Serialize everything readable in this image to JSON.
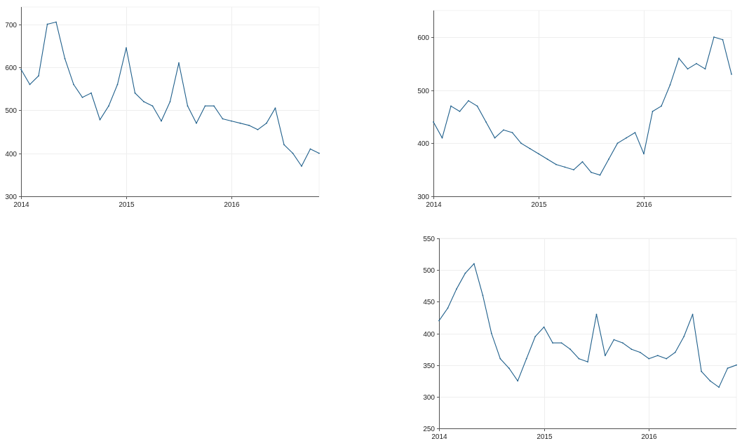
{
  "theme": {
    "line_color": "#1f5f8b"
  },
  "chart_data": [
    {
      "type": "line",
      "title": "",
      "xlabel": "",
      "ylabel": "",
      "x_ticks": [
        "2014",
        "2015",
        "2016"
      ],
      "y_ticks": [
        300,
        400,
        500,
        600,
        700
      ],
      "xlim": [
        "2014-01",
        "2016-11"
      ],
      "ylim": [
        300,
        740
      ],
      "grid": true,
      "legend": "none",
      "series": [
        {
          "x": [
            "2014-01",
            "2014-02",
            "2014-03",
            "2014-04",
            "2014-05",
            "2014-06",
            "2014-07",
            "2014-08",
            "2014-09",
            "2014-10",
            "2014-11",
            "2014-12",
            "2015-01",
            "2015-02",
            "2015-03",
            "2015-04",
            "2015-05",
            "2015-06",
            "2015-07",
            "2015-08",
            "2015-09",
            "2015-10",
            "2015-11",
            "2015-12",
            "2016-01",
            "2016-02",
            "2016-03",
            "2016-04",
            "2016-05",
            "2016-06",
            "2016-07",
            "2016-08",
            "2016-09",
            "2016-10",
            "2016-11"
          ],
          "values": [
            595,
            560,
            580,
            700,
            705,
            620,
            560,
            530,
            540,
            478,
            510,
            560,
            645,
            540,
            520,
            510,
            475,
            520,
            610,
            510,
            470,
            510,
            510,
            480,
            475,
            470,
            465,
            455,
            470,
            505,
            420,
            400,
            370,
            410,
            400
          ]
        }
      ]
    },
    {
      "type": "line",
      "title": "",
      "xlabel": "",
      "ylabel": "",
      "x_ticks": [
        "2014",
        "2015",
        "2016"
      ],
      "y_ticks": [
        300,
        400,
        500,
        600
      ],
      "xlim": [
        "2014-01",
        "2016-11"
      ],
      "ylim": [
        300,
        650
      ],
      "grid": true,
      "legend": "none",
      "series": [
        {
          "x": [
            "2014-01",
            "2014-02",
            "2014-03",
            "2014-04",
            "2014-05",
            "2014-06",
            "2014-07",
            "2014-08",
            "2014-09",
            "2014-10",
            "2014-11",
            "2014-12",
            "2015-01",
            "2015-02",
            "2015-03",
            "2015-04",
            "2015-05",
            "2015-06",
            "2015-07",
            "2015-08",
            "2015-09",
            "2015-10",
            "2015-11",
            "2015-12",
            "2016-01",
            "2016-02",
            "2016-03",
            "2016-04",
            "2016-05",
            "2016-06",
            "2016-07",
            "2016-08",
            "2016-09",
            "2016-10",
            "2016-11"
          ],
          "values": [
            440,
            410,
            470,
            460,
            480,
            470,
            440,
            410,
            425,
            420,
            400,
            390,
            380,
            370,
            360,
            355,
            350,
            365,
            345,
            340,
            370,
            400,
            410,
            420,
            380,
            460,
            470,
            510,
            560,
            540,
            550,
            540,
            600,
            595,
            530
          ]
        }
      ]
    },
    {
      "type": "line",
      "title": "",
      "xlabel": "",
      "ylabel": "",
      "x_ticks": [
        "2014",
        "2015",
        "2016"
      ],
      "y_ticks": [
        250,
        300,
        350,
        400,
        450,
        500,
        550
      ],
      "xlim": [
        "2014-01",
        "2016-11"
      ],
      "ylim": [
        250,
        550
      ],
      "grid": true,
      "legend": "none",
      "series": [
        {
          "x": [
            "2014-01",
            "2014-02",
            "2014-03",
            "2014-04",
            "2014-05",
            "2014-06",
            "2014-07",
            "2014-08",
            "2014-09",
            "2014-10",
            "2014-11",
            "2014-12",
            "2015-01",
            "2015-02",
            "2015-03",
            "2015-04",
            "2015-05",
            "2015-06",
            "2015-07",
            "2015-08",
            "2015-09",
            "2015-10",
            "2015-11",
            "2015-12",
            "2016-01",
            "2016-02",
            "2016-03",
            "2016-04",
            "2016-05",
            "2016-06",
            "2016-07",
            "2016-08",
            "2016-09",
            "2016-10",
            "2016-11"
          ],
          "values": [
            420,
            440,
            470,
            495,
            510,
            460,
            400,
            360,
            345,
            325,
            360,
            395,
            410,
            385,
            385,
            375,
            360,
            355,
            430,
            365,
            390,
            385,
            375,
            370,
            360,
            365,
            360,
            370,
            395,
            430,
            340,
            325,
            315,
            345,
            350
          ]
        }
      ]
    }
  ]
}
